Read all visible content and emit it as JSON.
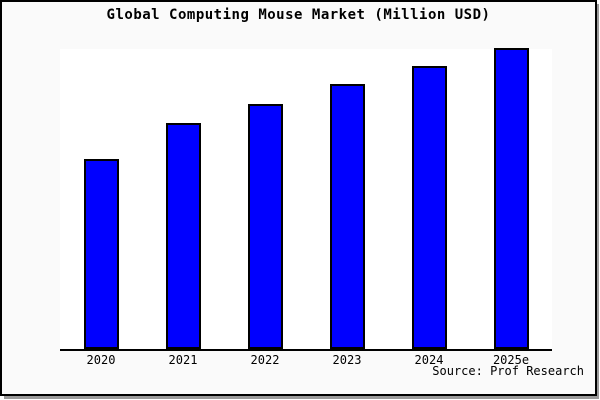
{
  "window": {
    "background": "#fafafa",
    "frame_border_color": "#000000",
    "frame_shadow_color": "#9a9a9a",
    "plot_background": "#ffffff"
  },
  "chart_data": {
    "type": "bar",
    "title": "Global Computing Mouse Market (Million USD)",
    "categories": [
      "2020",
      "2021",
      "2022",
      "2023",
      "2024",
      "2025e"
    ],
    "values": [
      63,
      75,
      81.5,
      88,
      94,
      100
    ],
    "value_scale_note": "no y-axis or value labels shown; values estimated relative to tallest bar (2025e = 100)",
    "units": "Million USD",
    "xlabel": "",
    "ylabel": "",
    "ylim": [
      0,
      100.5
    ],
    "grid": false,
    "legend": false,
    "bar_color": "#0000ff",
    "bar_border_color": "#000000",
    "source_text": "Source: Prof Research"
  }
}
